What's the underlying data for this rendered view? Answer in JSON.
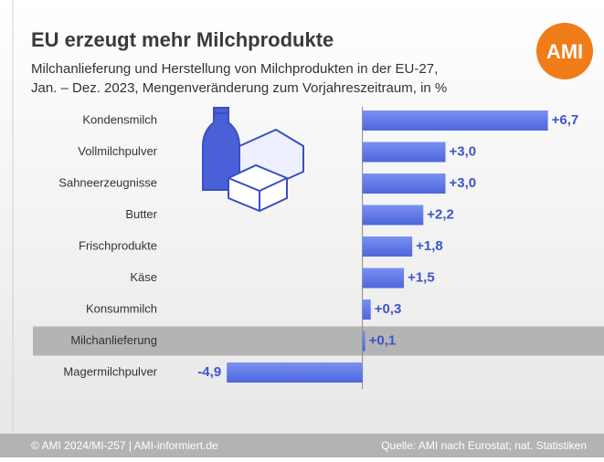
{
  "chart_data": {
    "type": "bar",
    "orientation": "horizontal",
    "title": "EU erzeugt mehr Milchprodukte",
    "subtitle": [
      "Milchanlieferung und Herstellung von Milchprodukten in der EU-27,",
      "Jan. – Dez. 2023, Mengenveränderung zum Vorjahreszeitraum, in %"
    ],
    "logo": "AMI",
    "categories": [
      "Kondensmilch",
      "Vollmilchpulver",
      "Sahneerzeugnisse",
      "Butter",
      "Frischprodukte",
      "Käse",
      "Konsummilch",
      "Milchanlieferung",
      "Magermilchpulver"
    ],
    "values": [
      6.7,
      3.0,
      3.0,
      2.2,
      1.8,
      1.5,
      0.3,
      0.1,
      -4.9
    ],
    "value_labels": [
      "+6,7",
      "+3,0",
      "+3,0",
      "+2,2",
      "+1,8",
      "+1,5",
      "+0,3",
      "+0,1",
      "-4,9"
    ],
    "highlight": "Milchanlieferung",
    "color": "#5a74e6",
    "label_color": "#3f55c8",
    "xlim": [
      -5.5,
      8
    ],
    "footer_left": "© AMI 2024/MI-257 | AMI-informiert.de",
    "footer_right": "Quelle: AMI nach Eurostat; nat. Statistiken"
  }
}
